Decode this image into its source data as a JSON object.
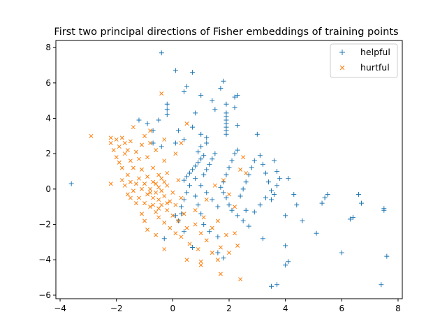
{
  "chart_data": {
    "type": "scatter",
    "title": "First two principal directions of Fisher embeddings of training points",
    "xlabel": "",
    "ylabel": "",
    "xlim": [
      -4.15,
      8.15
    ],
    "ylim": [
      -6.2,
      8.4
    ],
    "xticks": [
      -4,
      -2,
      0,
      2,
      4,
      6,
      8
    ],
    "yticks": [
      -6,
      -4,
      -2,
      0,
      2,
      4,
      6,
      8
    ],
    "grid": false,
    "legend": {
      "placement": "top-right"
    },
    "series": [
      {
        "name": "helpful",
        "marker": "+",
        "color": "#1f77b4",
        "points": [
          [
            -3.6,
            0.3
          ],
          [
            -0.4,
            7.7
          ],
          [
            0.1,
            6.7
          ],
          [
            0.7,
            6.6
          ],
          [
            0.5,
            5.8
          ],
          [
            0.4,
            5.5
          ],
          [
            1.8,
            6.1
          ],
          [
            1.7,
            5.7
          ],
          [
            1.4,
            5.0
          ],
          [
            2.3,
            5.3
          ],
          [
            2.2,
            5.2
          ],
          [
            1.0,
            5.3
          ],
          [
            1.9,
            4.8
          ],
          [
            2.2,
            4.6
          ],
          [
            -0.2,
            4.8
          ],
          [
            -0.2,
            4.5
          ],
          [
            -0.2,
            4.2
          ],
          [
            0.8,
            4.3
          ],
          [
            1.5,
            4.5
          ],
          [
            1.9,
            4.3
          ],
          [
            1.9,
            4.1
          ],
          [
            1.9,
            3.9
          ],
          [
            1.9,
            3.7
          ],
          [
            1.9,
            3.5
          ],
          [
            1.9,
            3.3
          ],
          [
            1.9,
            3.1
          ],
          [
            -1.2,
            3.9
          ],
          [
            -0.9,
            3.7
          ],
          [
            -0.5,
            3.9
          ],
          [
            -0.7,
            3.3
          ],
          [
            0.2,
            3.3
          ],
          [
            1.0,
            3.1
          ],
          [
            0.7,
            3.5
          ],
          [
            2.3,
            3.6
          ],
          [
            3.0,
            3.1
          ],
          [
            -0.7,
            2.6
          ],
          [
            -0.4,
            2.4
          ],
          [
            0.1,
            2.6
          ],
          [
            0.4,
            2.8
          ],
          [
            1.2,
            2.9
          ],
          [
            1.2,
            2.6
          ],
          [
            1.0,
            2.4
          ],
          [
            0.9,
            2.1
          ],
          [
            1.1,
            1.9
          ],
          [
            1.0,
            1.7
          ],
          [
            0.9,
            1.5
          ],
          [
            0.8,
            1.3
          ],
          [
            0.7,
            1.1
          ],
          [
            0.6,
            0.9
          ],
          [
            0.5,
            0.7
          ],
          [
            0.4,
            0.5
          ],
          [
            1.5,
            2.0
          ],
          [
            1.4,
            1.7
          ],
          [
            1.3,
            1.4
          ],
          [
            1.2,
            1.1
          ],
          [
            1.1,
            0.8
          ],
          [
            2.3,
            2.2
          ],
          [
            2.2,
            2.0
          ],
          [
            2.1,
            1.6
          ],
          [
            2.0,
            1.2
          ],
          [
            1.9,
            0.8
          ],
          [
            1.8,
            0.4
          ],
          [
            1.7,
            0.1
          ],
          [
            1.8,
            -0.2
          ],
          [
            1.9,
            -0.5
          ],
          [
            2.0,
            -0.9
          ],
          [
            2.1,
            -1.2
          ],
          [
            2.3,
            -1.5
          ],
          [
            2.5,
            -1.8
          ],
          [
            2.9,
            1.6
          ],
          [
            2.8,
            1.2
          ],
          [
            2.7,
            0.8
          ],
          [
            2.6,
            0.4
          ],
          [
            2.5,
            0.0
          ],
          [
            2.4,
            -0.4
          ],
          [
            3.1,
            1.9
          ],
          [
            3.2,
            1.4
          ],
          [
            3.3,
            0.9
          ],
          [
            3.4,
            0.4
          ],
          [
            3.5,
            -0.1
          ],
          [
            3.3,
            -0.5
          ],
          [
            3.1,
            -0.9
          ],
          [
            2.9,
            -1.3
          ],
          [
            3.6,
            1.6
          ],
          [
            3.7,
            1.0
          ],
          [
            3.8,
            0.6
          ],
          [
            3.7,
            0.2
          ],
          [
            3.6,
            -0.3
          ],
          [
            3.5,
            -0.6
          ],
          [
            2.6,
            -1.2
          ],
          [
            2.7,
            -2.1
          ],
          [
            3.2,
            -2.8
          ],
          [
            1.6,
            -1.0
          ],
          [
            1.4,
            -0.6
          ],
          [
            1.2,
            -0.2
          ],
          [
            1.0,
            0.2
          ],
          [
            0.8,
            0.6
          ],
          [
            0.6,
            0.2
          ],
          [
            0.5,
            -0.2
          ],
          [
            0.4,
            -0.6
          ],
          [
            0.3,
            -1.0
          ],
          [
            0.3,
            -1.4
          ],
          [
            0.2,
            -1.8
          ],
          [
            0.8,
            -0.4
          ],
          [
            0.9,
            -0.9
          ],
          [
            1.0,
            -1.4
          ],
          [
            1.1,
            -2.0
          ],
          [
            1.3,
            -2.4
          ],
          [
            1.6,
            -2.7
          ],
          [
            0.7,
            -3.3
          ],
          [
            1.6,
            -3.6
          ],
          [
            1.8,
            -3.9
          ],
          [
            4.1,
            0.6
          ],
          [
            4.3,
            -0.3
          ],
          [
            4.4,
            -0.9
          ],
          [
            4.0,
            -1.5
          ],
          [
            4.6,
            -1.8
          ],
          [
            5.1,
            -2.5
          ],
          [
            5.3,
            -0.8
          ],
          [
            5.5,
            -0.3
          ],
          [
            5.4,
            -0.5
          ],
          [
            6.0,
            -3.6
          ],
          [
            6.3,
            -1.7
          ],
          [
            6.4,
            -1.6
          ],
          [
            6.6,
            -0.3
          ],
          [
            6.7,
            -0.8
          ],
          [
            7.5,
            -1.2
          ],
          [
            7.5,
            -1.1
          ],
          [
            7.4,
            -5.4
          ],
          [
            7.6,
            -3.8
          ],
          [
            3.7,
            -5.4
          ],
          [
            3.5,
            -5.5
          ],
          [
            4.0,
            -4.3
          ],
          [
            4.1,
            -4.1
          ],
          [
            4.0,
            -3.2
          ],
          [
            0.4,
            -2.4
          ],
          [
            -0.3,
            -2.8
          ],
          [
            0.1,
            -1.5
          ]
        ]
      },
      {
        "name": "hurtful",
        "marker": "x",
        "color": "#ff7f0e",
        "points": [
          [
            -2.9,
            3.0
          ],
          [
            -2.2,
            0.3
          ],
          [
            -2.2,
            2.9
          ],
          [
            -2.2,
            2.6
          ],
          [
            -2.1,
            2.2
          ],
          [
            -2.0,
            2.8
          ],
          [
            -2.0,
            1.8
          ],
          [
            -1.9,
            2.4
          ],
          [
            -1.9,
            1.5
          ],
          [
            -1.8,
            2.9
          ],
          [
            -1.8,
            1.2
          ],
          [
            -1.7,
            2.6
          ],
          [
            -1.7,
            2.0
          ],
          [
            -1.6,
            0.8
          ],
          [
            -1.6,
            2.2
          ],
          [
            -1.5,
            1.6
          ],
          [
            -1.5,
            2.7
          ],
          [
            -1.4,
            3.5
          ],
          [
            -1.4,
            1.2
          ],
          [
            -1.3,
            2.1
          ],
          [
            -1.2,
            1.7
          ],
          [
            -1.2,
            0.6
          ],
          [
            -1.1,
            2.5
          ],
          [
            -1.1,
            1.1
          ],
          [
            -1.0,
            3.0
          ],
          [
            -1.0,
            0.3
          ],
          [
            -0.9,
            1.8
          ],
          [
            -0.8,
            2.6
          ],
          [
            -0.8,
            3.3
          ],
          [
            -0.8,
            -0.2
          ],
          [
            -0.7,
            1.2
          ],
          [
            -0.6,
            2.2
          ],
          [
            -0.5,
            0.8
          ],
          [
            -0.4,
            5.4
          ],
          [
            -0.3,
            1.6
          ],
          [
            -0.3,
            2.8
          ],
          [
            -0.2,
            0.2
          ],
          [
            0.1,
            2.0
          ],
          [
            0.3,
            2.6
          ],
          [
            0.5,
            3.7
          ],
          [
            -1.8,
            0.5
          ],
          [
            -1.7,
            0.2
          ],
          [
            -1.6,
            -0.3
          ],
          [
            -1.5,
            0.4
          ],
          [
            -1.4,
            -0.1
          ],
          [
            -1.3,
            0.3
          ],
          [
            -1.2,
            -0.5
          ],
          [
            -1.1,
            0.0
          ],
          [
            -1.0,
            -0.8
          ],
          [
            -0.9,
            -0.3
          ],
          [
            -0.9,
            0.7
          ],
          [
            -0.8,
            -1.0
          ],
          [
            -0.7,
            -0.5
          ],
          [
            -0.7,
            0.4
          ],
          [
            -0.6,
            -1.3
          ],
          [
            -0.6,
            -0.2
          ],
          [
            -0.5,
            -1.6
          ],
          [
            -0.5,
            0.1
          ],
          [
            -0.4,
            -0.9
          ],
          [
            -0.4,
            0.6
          ],
          [
            -0.3,
            -1.9
          ],
          [
            -0.3,
            -0.4
          ],
          [
            -0.2,
            -1.2
          ],
          [
            -0.2,
            0.9
          ],
          [
            -0.1,
            -0.7
          ],
          [
            -0.1,
            -2.2
          ],
          [
            0.0,
            -0.2
          ],
          [
            0.0,
            -1.5
          ],
          [
            0.1,
            -2.5
          ],
          [
            0.1,
            -0.9
          ],
          [
            0.2,
            -1.8
          ],
          [
            0.2,
            0.5
          ],
          [
            0.3,
            -2.7
          ],
          [
            0.3,
            -0.5
          ],
          [
            0.4,
            -1.4
          ],
          [
            0.5,
            -2.2
          ],
          [
            0.6,
            -3.1
          ],
          [
            0.8,
            -2.0
          ],
          [
            0.9,
            -3.4
          ],
          [
            1.0,
            -2.5
          ],
          [
            1.1,
            -1.6
          ],
          [
            1.2,
            -2.9
          ],
          [
            1.4,
            -2.2
          ],
          [
            1.4,
            -3.6
          ],
          [
            1.6,
            -1.8
          ],
          [
            1.7,
            -3.3
          ],
          [
            1.9,
            -2.6
          ],
          [
            2.0,
            -3.6
          ],
          [
            2.2,
            -2.5
          ],
          [
            2.3,
            -3.2
          ],
          [
            -0.3,
            -3.4
          ],
          [
            0.5,
            -4.0
          ],
          [
            1.0,
            -4.3
          ],
          [
            1.0,
            -4.1
          ],
          [
            1.6,
            -4.0
          ],
          [
            1.7,
            -4.8
          ],
          [
            2.4,
            -5.1
          ],
          [
            2.2,
            -1.0
          ],
          [
            2.0,
            -0.3
          ],
          [
            2.4,
            1.1
          ],
          [
            2.5,
            1.8
          ],
          [
            2.6,
            0.9
          ],
          [
            1.8,
            0.5
          ],
          [
            1.5,
            0.2
          ],
          [
            1.2,
            -0.6
          ],
          [
            0.8,
            -1.2
          ],
          [
            -0.6,
            -2.6
          ],
          [
            -1.0,
            -1.8
          ],
          [
            -1.1,
            -1.4
          ],
          [
            -1.3,
            -0.8
          ],
          [
            -1.5,
            -0.5
          ],
          [
            -0.9,
            -2.3
          ],
          [
            -0.5,
            -0.6
          ],
          [
            -0.4,
            -0.1
          ],
          [
            -0.6,
            0.3
          ],
          [
            -0.3,
            0.4
          ],
          [
            -0.2,
            -0.8
          ],
          [
            -0.7,
            -0.9
          ],
          [
            -0.5,
            -1.1
          ],
          [
            -0.8,
            0.0
          ]
        ]
      }
    ]
  }
}
